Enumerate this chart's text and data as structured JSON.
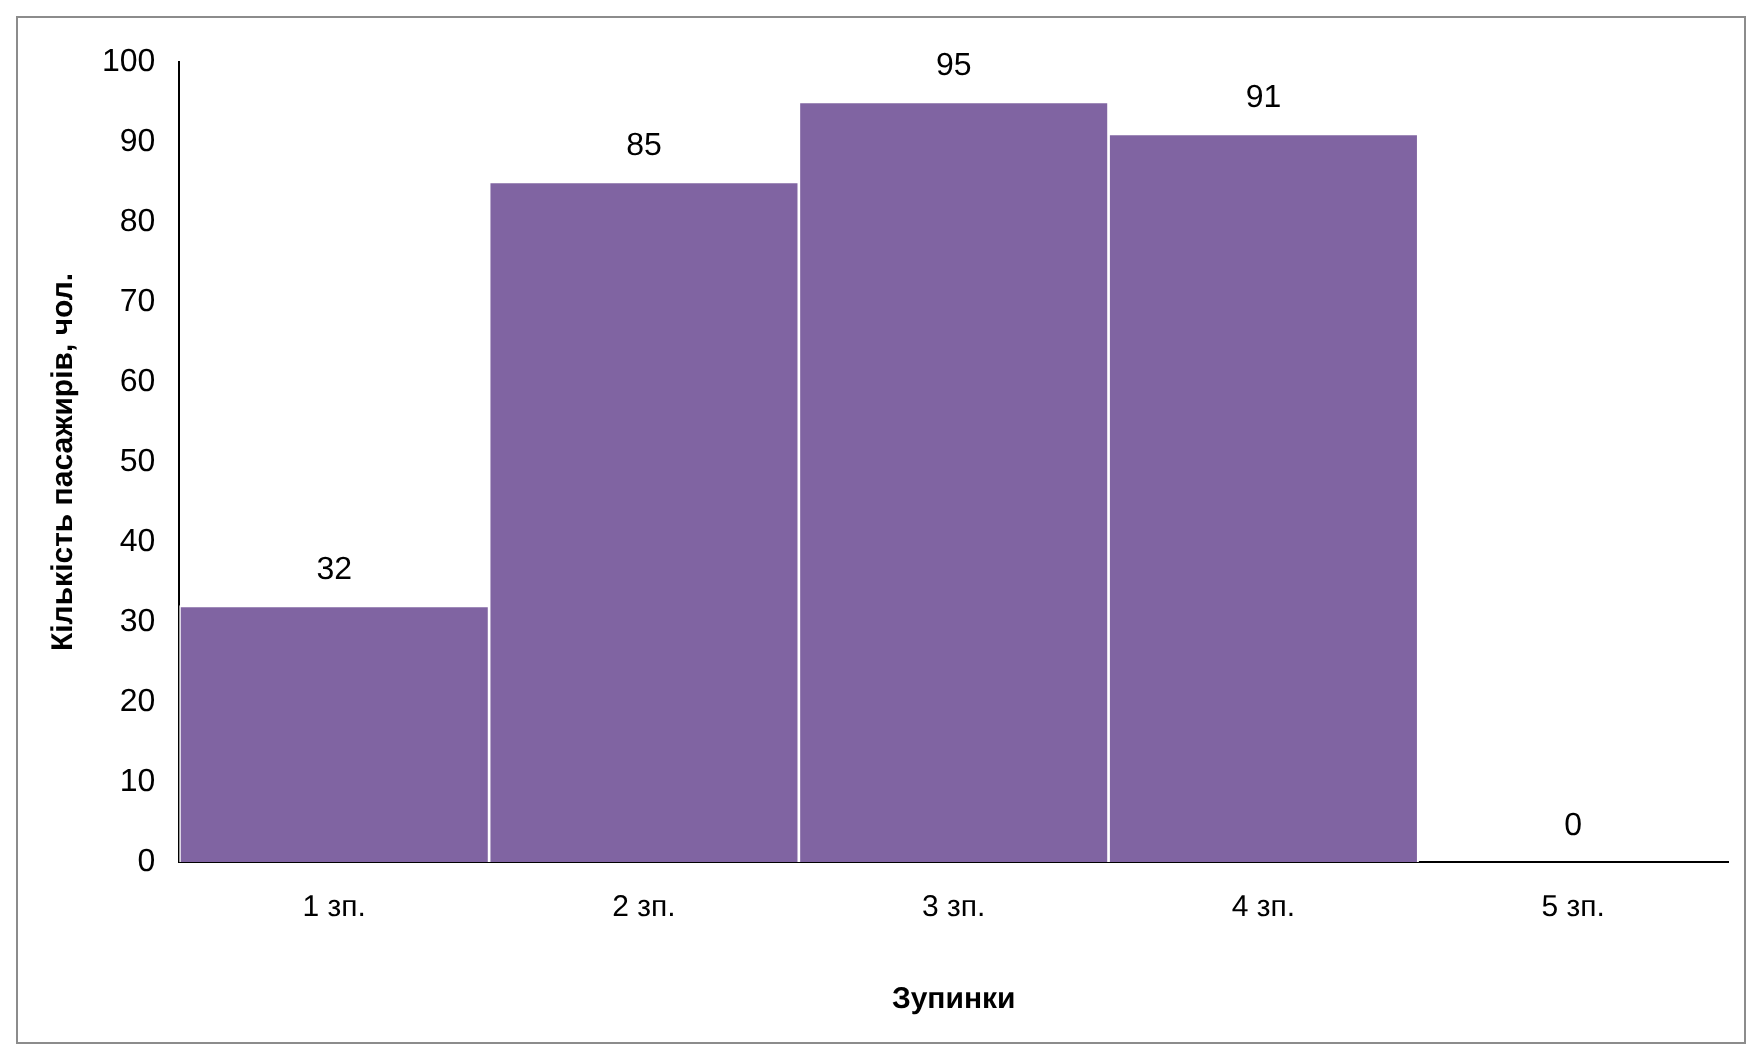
{
  "chart_data": {
    "type": "bar",
    "xlabel": "Зупинки",
    "ylabel": "Кількість пасажирів, чол.",
    "categories": [
      "1 зп.",
      "2 зп.",
      "3 зп.",
      "4 зп.",
      "5 зп."
    ],
    "values": [
      32,
      85,
      95,
      91,
      0
    ],
    "color": "#8064a2",
    "ylim": [
      0,
      100
    ],
    "yticks": [
      0,
      10,
      20,
      30,
      40,
      50,
      60,
      70,
      80,
      90,
      100
    ],
    "grid": false,
    "data_labels": true
  }
}
